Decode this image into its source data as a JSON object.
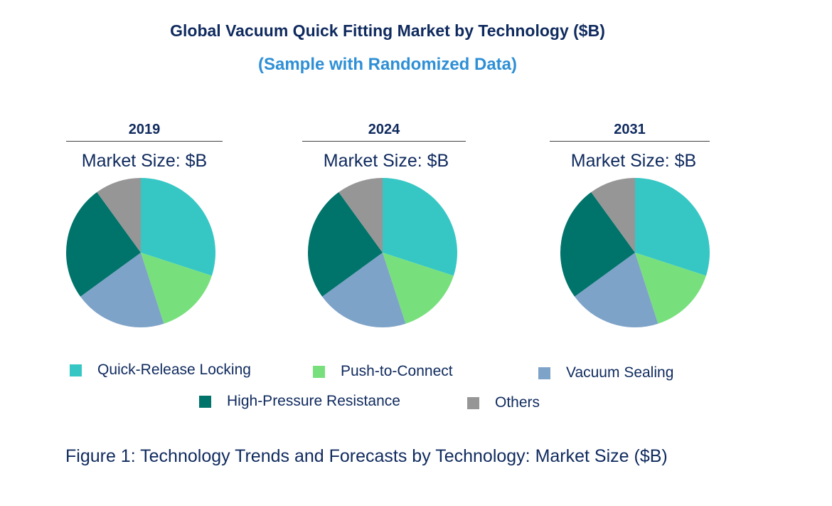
{
  "chart_data": {
    "type": "pie",
    "title": "Global Vacuum Quick Fitting Market by Technology ($B)",
    "subtitle": "(Sample with Randomized Data)",
    "caption": "Figure 1: Technology Trends and Forecasts by Technology: Market Size ($B)",
    "legend": [
      "Quick-Release Locking",
      "Push-to-Connect",
      "Vacuum Sealing",
      "High-Pressure Resistance",
      "Others"
    ],
    "colors": [
      "#36c7c5",
      "#77e07c",
      "#7ea3c8",
      "#00736a",
      "#969696"
    ],
    "legend_placement": "bottom",
    "pies": [
      {
        "year": "2019",
        "label": "Market Size: $B",
        "values": [
          30,
          15,
          20,
          25,
          10
        ]
      },
      {
        "year": "2024",
        "label": "Market Size: $B",
        "values": [
          30,
          15,
          20,
          25,
          10
        ]
      },
      {
        "year": "2031",
        "label": "Market Size: $B",
        "values": [
          30,
          15,
          20,
          25,
          10
        ]
      }
    ]
  }
}
